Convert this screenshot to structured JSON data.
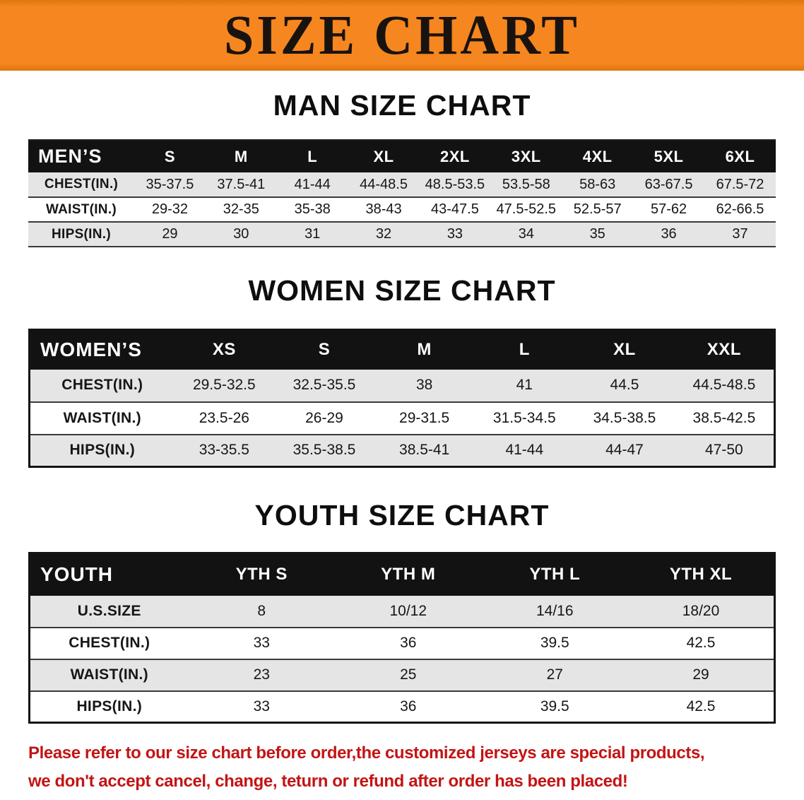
{
  "banner": {
    "title": "SIZE CHART"
  },
  "colors": {
    "banner-bg": "#f6861f",
    "banner-edge": "#df750f",
    "header-bg": "#121212",
    "row-alt": "#e5e5e5",
    "notice-red": "#c31414"
  },
  "sections": [
    {
      "heading": "MAN SIZE CHART",
      "table": {
        "corner_label": "MEN’S",
        "columns": [
          "S",
          "M",
          "L",
          "XL",
          "2XL",
          "3XL",
          "4XL",
          "5XL",
          "6XL"
        ],
        "rows": [
          {
            "label": "CHEST(IN.)",
            "values": [
              "35-37.5",
              "37.5-41",
              "41-44",
              "44-48.5",
              "48.5-53.5",
              "53.5-58",
              "58-63",
              "63-67.5",
              "67.5-72"
            ]
          },
          {
            "label": "WAIST(IN.)",
            "values": [
              "29-32",
              "32-35",
              "35-38",
              "38-43",
              "43-47.5",
              "47.5-52.5",
              "52.5-57",
              "57-62",
              "62-66.5"
            ]
          },
          {
            "label": "HIPS(IN.)",
            "values": [
              "29",
              "30",
              "31",
              "32",
              "33",
              "34",
              "35",
              "36",
              "37"
            ]
          }
        ]
      }
    },
    {
      "heading": "WOMEN SIZE CHART",
      "table": {
        "corner_label": "WOMEN’S",
        "columns": [
          "XS",
          "S",
          "M",
          "L",
          "XL",
          "XXL"
        ],
        "rows": [
          {
            "label": "CHEST(IN.)",
            "values": [
              "29.5-32.5",
              "32.5-35.5",
              "38",
              "41",
              "44.5",
              "44.5-48.5"
            ]
          },
          {
            "label": "WAIST(IN.)",
            "values": [
              "23.5-26",
              "26-29",
              "29-31.5",
              "31.5-34.5",
              "34.5-38.5",
              "38.5-42.5"
            ]
          },
          {
            "label": "HIPS(IN.)",
            "values": [
              "33-35.5",
              "35.5-38.5",
              "38.5-41",
              "41-44",
              "44-47",
              "47-50"
            ]
          }
        ]
      }
    },
    {
      "heading": "YOUTH SIZE CHART",
      "table": {
        "corner_label": "YOUTH",
        "columns": [
          "YTH S",
          "YTH M",
          "YTH L",
          "YTH XL"
        ],
        "rows": [
          {
            "label": "U.S.SIZE",
            "values": [
              "8",
              "10/12",
              "14/16",
              "18/20"
            ]
          },
          {
            "label": "CHEST(IN.)",
            "values": [
              "33",
              "36",
              "39.5",
              "42.5"
            ]
          },
          {
            "label": "WAIST(IN.)",
            "values": [
              "23",
              "25",
              "27",
              "29"
            ]
          },
          {
            "label": "HIPS(IN.)",
            "values": [
              "33",
              "36",
              "39.5",
              "42.5"
            ]
          }
        ]
      }
    }
  ],
  "footer": {
    "lines": [
      "Please refer to our size chart before order,the customized jerseys are special products,",
      "we don't accept cancel, change, teturn or refund after order has been placed!"
    ]
  }
}
